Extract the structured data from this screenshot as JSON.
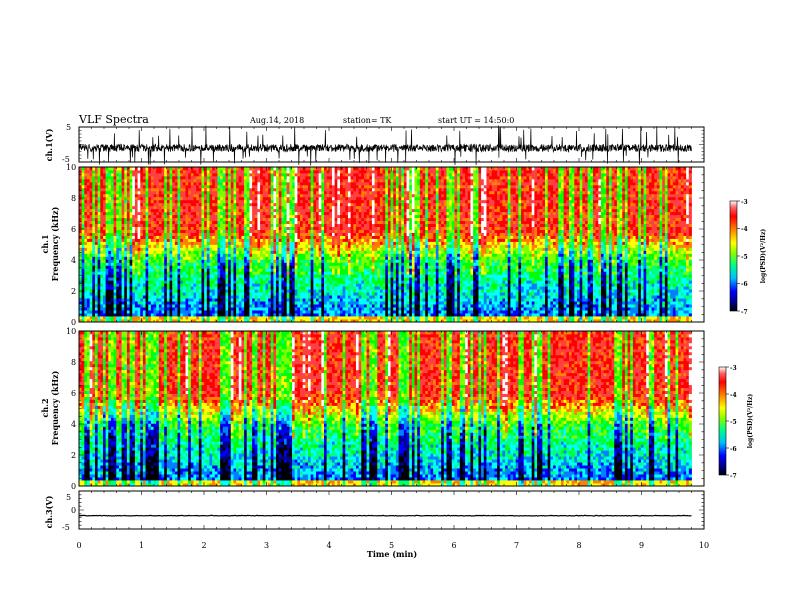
{
  "header": {
    "title": "VLF Spectra",
    "date": "Aug.14, 2018",
    "station": "station= TK",
    "start_ut": "start  UT =    14:50:0"
  },
  "chart_data": [
    {
      "type": "line",
      "panel": "ch1-waveform",
      "ylabel": "ch.1(V)",
      "xlim": [
        0,
        10
      ],
      "ylim": [
        -5,
        5
      ],
      "yticks": [
        "5",
        "-5"
      ],
      "description_series": "noisy voltage trace with baseline near -1 V and frequent spikes to +5 / -5 V",
      "baseline": -1,
      "color": "#000000"
    },
    {
      "type": "heatmap",
      "panel": "ch1-spectrogram",
      "ylabel_line1": "ch.1",
      "ylabel_line2": "Frequency (kHz)",
      "xlim": [
        0,
        10
      ],
      "ylim": [
        0,
        10
      ],
      "yticks": [
        "0",
        "2",
        "4",
        "6",
        "8",
        "10"
      ],
      "data_end_min": 9.8,
      "colorbar": {
        "label": "log(PSD)(V²/Hz)",
        "range": [
          -7,
          -3
        ],
        "ticks": [
          "-3",
          "-4",
          "-5",
          "-6",
          "-7"
        ]
      }
    },
    {
      "type": "heatmap",
      "panel": "ch2-spectrogram",
      "ylabel_line1": "ch.2",
      "ylabel_line2": "Frequency (kHz)",
      "xlim": [
        0,
        10
      ],
      "ylim": [
        0,
        10
      ],
      "yticks": [
        "0",
        "2",
        "4",
        "6",
        "8",
        "10"
      ],
      "data_end_min": 9.8,
      "colorbar": {
        "label": "log(PSD)(V²/Hz)",
        "range": [
          -7,
          -3
        ],
        "ticks": [
          "-3",
          "-4",
          "-5",
          "-6",
          "-7"
        ]
      }
    },
    {
      "type": "line",
      "panel": "ch3-waveform",
      "ylabel": "ch.3(V)",
      "xlim": [
        0,
        10
      ],
      "ylim": [
        -5,
        5
      ],
      "yticks": [
        "5",
        "0",
        "-5"
      ],
      "constant_value": -1.5,
      "color": "#000000"
    }
  ],
  "xaxis": {
    "label": "Time  (min)",
    "ticks": [
      "0",
      "1",
      "2",
      "3",
      "4",
      "5",
      "6",
      "7",
      "8",
      "9",
      "10"
    ]
  },
  "colormap": [
    "#000000",
    "#00008b",
    "#0000ff",
    "#0080ff",
    "#00ffff",
    "#00ff80",
    "#00ff00",
    "#80ff00",
    "#ffff00",
    "#ff8000",
    "#ff0000",
    "#ff4040",
    "#ffffff"
  ]
}
